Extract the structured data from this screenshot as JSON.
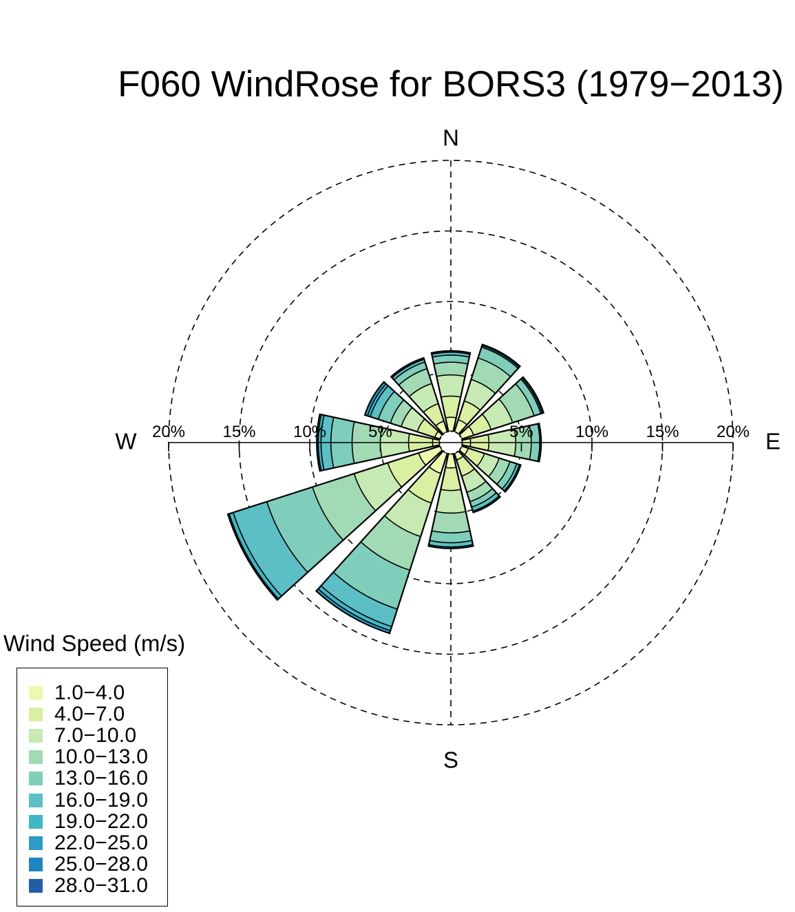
{
  "chart_data": {
    "type": "windrose",
    "title": "F060 WindRose for BORS3 (1979−2013)",
    "compass": {
      "north": "N",
      "east": "E",
      "south": "S",
      "west": "W"
    },
    "radial_ticks": [
      {
        "value": 5,
        "label": "5%"
      },
      {
        "value": 10,
        "label": "10%"
      },
      {
        "value": 15,
        "label": "15%"
      },
      {
        "value": 20,
        "label": "20%"
      }
    ],
    "rmax": 20,
    "calm_radius": 0.8,
    "sector_width_deg": 30,
    "legend": {
      "title": "Wind Speed (m/s)",
      "bins": [
        "1.0−4.0",
        "4.0−7.0",
        "7.0−10.0",
        "10.0−13.0",
        "13.0−16.0",
        "16.0−19.0",
        "19.0−22.0",
        "22.0−25.0",
        "25.0−28.0",
        "28.0−31.0"
      ],
      "colors": [
        "#EDF8B1",
        "#D9F0A3",
        "#C7E9B4",
        "#A1DAB4",
        "#7FCDBB",
        "#5BBFC5",
        "#41B6C4",
        "#2C9CC4",
        "#1D86C1",
        "#225EA8"
      ]
    },
    "sectors": [
      {
        "direction_deg": 0,
        "cumulative": [
          1.8,
          3.3,
          4.8,
          5.7,
          6.2,
          6.4,
          6.5
        ]
      },
      {
        "direction_deg": 30,
        "cumulative": [
          1.7,
          3.1,
          4.7,
          6.3,
          7.1,
          7.2,
          7.3
        ]
      },
      {
        "direction_deg": 60,
        "cumulative": [
          1.7,
          3.0,
          4.6,
          6.2,
          6.7,
          6.8,
          6.9
        ]
      },
      {
        "direction_deg": 90,
        "cumulative": [
          1.4,
          2.7,
          4.6,
          5.7,
          6.3,
          6.4
        ]
      },
      {
        "direction_deg": 120,
        "cumulative": [
          1.3,
          2.5,
          3.6,
          4.4,
          4.9,
          5.1,
          5.2
        ]
      },
      {
        "direction_deg": 150,
        "cumulative": [
          1.3,
          2.5,
          3.7,
          4.4,
          4.8,
          5.1,
          5.2
        ]
      },
      {
        "direction_deg": 180,
        "cumulative": [
          1.8,
          3.4,
          5.0,
          6.4,
          7.1,
          7.4,
          7.5
        ]
      },
      {
        "direction_deg": 210,
        "cumulative": [
          2.3,
          4.5,
          7.0,
          9.5,
          12.4,
          13.7,
          14.0,
          14.2
        ]
      },
      {
        "direction_deg": 240,
        "cumulative": [
          2.4,
          4.7,
          7.2,
          10.3,
          13.7,
          16.2,
          16.5,
          16.6
        ]
      },
      {
        "direction_deg": 270,
        "cumulative": [
          1.3,
          3.0,
          5.0,
          7.0,
          8.5,
          9.2,
          9.4,
          9.5
        ]
      },
      {
        "direction_deg": 300,
        "cumulative": [
          1.2,
          2.5,
          3.7,
          4.5,
          5.4,
          6.0,
          6.2,
          6.4
        ]
      },
      {
        "direction_deg": 330,
        "cumulative": [
          1.6,
          2.9,
          4.4,
          5.5,
          6.0,
          6.2,
          6.3
        ]
      }
    ],
    "grid": true,
    "legend_position": "bottom-left"
  }
}
